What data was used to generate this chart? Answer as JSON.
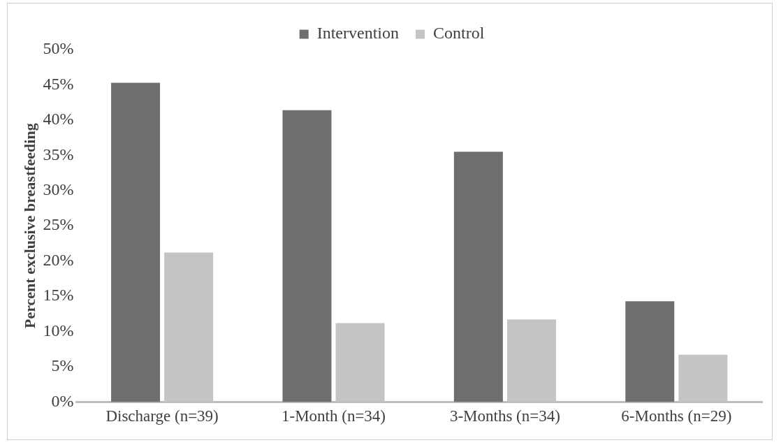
{
  "chart_data": {
    "type": "bar",
    "ylabel": "Percent exclusive breastfeeding",
    "categories": [
      "Discharge (n=39)",
      "1-Month (n=34)",
      "3-Months (n=34)",
      "6-Months (n=29)"
    ],
    "series": [
      {
        "name": "Intervention",
        "color": "#6e6e6e",
        "values": [
          45.3,
          41.4,
          35.5,
          14.3
        ]
      },
      {
        "name": "Control",
        "color": "#c4c4c4",
        "values": [
          21.2,
          11.2,
          11.7,
          6.7
        ]
      }
    ],
    "ylim": [
      0,
      50
    ],
    "yticks": [
      {
        "value": 0,
        "label": "0%"
      },
      {
        "value": 5,
        "label": "5%"
      },
      {
        "value": 10,
        "label": "10%"
      },
      {
        "value": 15,
        "label": "15%"
      },
      {
        "value": 20,
        "label": "20%"
      },
      {
        "value": 25,
        "label": "25%"
      },
      {
        "value": 30,
        "label": "30%"
      },
      {
        "value": 35,
        "label": "35%"
      },
      {
        "value": 40,
        "label": "40%"
      },
      {
        "value": 45,
        "label": "45%"
      },
      {
        "value": 50,
        "label": "50%"
      }
    ],
    "grid": false,
    "legend": "top"
  }
}
